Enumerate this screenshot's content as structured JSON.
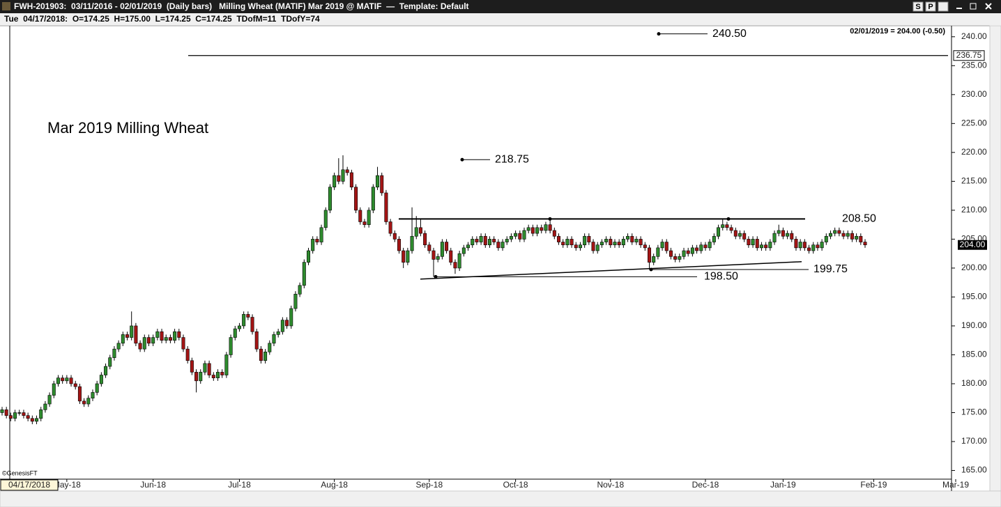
{
  "header": {
    "symbol_line": "FWH-201903:  03/11/2016 - 02/01/2019  (Daily bars)   Milling Wheat (MATIF) Mar 2019 @ MATIF  —  Template: Default",
    "buttons": [
      "S",
      "P"
    ],
    "info_line": "Tue  04/17/2018:  O=174.25  H=175.00  L=174.25  C=174.25  TDofM=11  TDofY=74"
  },
  "chart_data": {
    "type": "candlestick",
    "title": "Mar 2019 Milling Wheat",
    "status": "02/01/2019 = 204.00 (-0.50)",
    "watermark": "©GenesisFT",
    "cursor_date": "04/17/2018",
    "up_color": "#2e8b2e",
    "down_color": "#a31515",
    "ylim": [
      163.5,
      241.9
    ],
    "yticks": [
      {
        "value": 165,
        "label": "165.00"
      },
      {
        "value": 170,
        "label": "170.00"
      },
      {
        "value": 175,
        "label": "175.00"
      },
      {
        "value": 180,
        "label": "180.00"
      },
      {
        "value": 185,
        "label": "185.00"
      },
      {
        "value": 190,
        "label": "190.00"
      },
      {
        "value": 195,
        "label": "195.00"
      },
      {
        "value": 200,
        "label": "200.00"
      },
      {
        "value": 205,
        "label": "205.00"
      },
      {
        "value": 210,
        "label": "210.00"
      },
      {
        "value": 215,
        "label": "215.00"
      },
      {
        "value": 220,
        "label": "220.00"
      },
      {
        "value": 225,
        "label": "225.00"
      },
      {
        "value": 230,
        "label": "230.00"
      },
      {
        "value": 235,
        "label": "235.00"
      },
      {
        "value": 240,
        "label": "240.00"
      }
    ],
    "xlim": [
      0,
      221
    ],
    "xticks": [
      {
        "value": 15,
        "label": "May-18"
      },
      {
        "value": 35,
        "label": "Jun-18"
      },
      {
        "value": 55,
        "label": "Jul-18"
      },
      {
        "value": 77,
        "label": "Aug-18"
      },
      {
        "value": 99,
        "label": "Sep-18"
      },
      {
        "value": 119,
        "label": "Oct-18"
      },
      {
        "value": 141,
        "label": "Nov-18"
      },
      {
        "value": 163,
        "label": "Dec-18"
      },
      {
        "value": 181,
        "label": "Jan-19"
      },
      {
        "value": 202,
        "label": "Feb-19"
      },
      {
        "value": 221,
        "label": "Mar-19"
      }
    ],
    "hline": {
      "value": 236.75,
      "label": "236.75"
    },
    "last_price": {
      "value": 204,
      "label": "204.00"
    },
    "support_line": [
      198.1,
      201.1
    ],
    "annotations": [
      {
        "value": 240.5,
        "label": "240.50"
      },
      {
        "value": 218.75,
        "label": "218.75"
      },
      {
        "value": 208.5,
        "label": "208.50"
      },
      {
        "value": 199.75,
        "label": "199.75"
      },
      {
        "value": 198.5,
        "label": "198.50"
      }
    ],
    "ohlc": [
      [
        175,
        176,
        174.5,
        175.5
      ],
      [
        175.5,
        176,
        174,
        174.5
      ],
      [
        174.5,
        175,
        173.5,
        174
      ],
      [
        174,
        175.5,
        173.5,
        175
      ],
      [
        175,
        175.5,
        174.5,
        175
      ],
      [
        175,
        175.5,
        174,
        174.5
      ],
      [
        174.5,
        175,
        173.5,
        174
      ],
      [
        174,
        174.5,
        173,
        173.5
      ],
      [
        173.5,
        174.5,
        173,
        174
      ],
      [
        174,
        176,
        173.5,
        175.5
      ],
      [
        175.5,
        177,
        175,
        176.5
      ],
      [
        176.5,
        178.5,
        176,
        178
      ],
      [
        178,
        180.5,
        177.5,
        180
      ],
      [
        180,
        181.5,
        179.5,
        181
      ],
      [
        181,
        181.5,
        180,
        180.5
      ],
      [
        180.5,
        181.5,
        180,
        181
      ],
      [
        181,
        181.5,
        179.5,
        180
      ],
      [
        180,
        180.5,
        179,
        179.5
      ],
      [
        179.5,
        180,
        176.5,
        177
      ],
      [
        177,
        177.5,
        176,
        176.5
      ],
      [
        176.5,
        178,
        176,
        177.5
      ],
      [
        177.5,
        179,
        177,
        178.5
      ],
      [
        178.5,
        180.5,
        178,
        180
      ],
      [
        180,
        182,
        179.5,
        181.5
      ],
      [
        181.5,
        183.5,
        181,
        183
      ],
      [
        183,
        185,
        182.5,
        184.5
      ],
      [
        184.5,
        186.5,
        184,
        186
      ],
      [
        186,
        187.5,
        185.5,
        187
      ],
      [
        187,
        189,
        186.5,
        188.5
      ],
      [
        188.5,
        189,
        187.5,
        188
      ],
      [
        188,
        192.5,
        187.5,
        190
      ],
      [
        190,
        190.5,
        186.5,
        187
      ],
      [
        187,
        187.5,
        185.5,
        186
      ],
      [
        186,
        188.5,
        185.5,
        188
      ],
      [
        188,
        188.5,
        186.5,
        187
      ],
      [
        187,
        188.5,
        186.5,
        188
      ],
      [
        188,
        189.5,
        187.5,
        189
      ],
      [
        189,
        189.5,
        187,
        187.5
      ],
      [
        187.5,
        188.5,
        187,
        188
      ],
      [
        188,
        188.5,
        187,
        187.5
      ],
      [
        187.5,
        189.5,
        187,
        189
      ],
      [
        189,
        189.5,
        187.5,
        188
      ],
      [
        188,
        188.5,
        185.5,
        186
      ],
      [
        186,
        186.5,
        183.5,
        184
      ],
      [
        184,
        184.5,
        181.5,
        182
      ],
      [
        182,
        182.5,
        178.5,
        180.5
      ],
      [
        180.5,
        182.5,
        180,
        182
      ],
      [
        182,
        184,
        181.5,
        183.5
      ],
      [
        183.5,
        184,
        181,
        181.5
      ],
      [
        181.5,
        182,
        180.5,
        181
      ],
      [
        181,
        182.5,
        180.5,
        182
      ],
      [
        182,
        182.5,
        181,
        181.5
      ],
      [
        181.5,
        185.5,
        181,
        185
      ],
      [
        185,
        188.5,
        184.5,
        188
      ],
      [
        188,
        190,
        187.5,
        189.5
      ],
      [
        189.5,
        190.5,
        189,
        190
      ],
      [
        190,
        192.5,
        189.5,
        192
      ],
      [
        192,
        192.5,
        191,
        191.5
      ],
      [
        191.5,
        192,
        188.5,
        189
      ],
      [
        189,
        189.5,
        185.5,
        186
      ],
      [
        186,
        186.5,
        183.5,
        184
      ],
      [
        184,
        186,
        183.5,
        185.5
      ],
      [
        185.5,
        187.5,
        185,
        187
      ],
      [
        187,
        189,
        186.5,
        188.5
      ],
      [
        188.5,
        189.5,
        188,
        189
      ],
      [
        189,
        191.5,
        188.5,
        191
      ],
      [
        191,
        191.5,
        189.5,
        190
      ],
      [
        190,
        193.5,
        189.5,
        193
      ],
      [
        193,
        196,
        192.5,
        195.5
      ],
      [
        195.5,
        197.5,
        195,
        197
      ],
      [
        197,
        201.5,
        196.5,
        201
      ],
      [
        201,
        203.5,
        200.5,
        203
      ],
      [
        203,
        205.5,
        202.5,
        205
      ],
      [
        205,
        205.5,
        204,
        204.5
      ],
      [
        204.5,
        207.5,
        204,
        207
      ],
      [
        207,
        210.5,
        206.5,
        210
      ],
      [
        210,
        214.5,
        209.5,
        214
      ],
      [
        214,
        216.5,
        213.5,
        216
      ],
      [
        216,
        219,
        214.5,
        215
      ],
      [
        215,
        219.5,
        214.5,
        217
      ],
      [
        217,
        217.5,
        216,
        216.5
      ],
      [
        216.5,
        217,
        213.5,
        214
      ],
      [
        214,
        214.5,
        209.5,
        210
      ],
      [
        210,
        210.5,
        207.5,
        208
      ],
      [
        208,
        208.5,
        207,
        207.5
      ],
      [
        207.5,
        210.5,
        207,
        210
      ],
      [
        210,
        214.5,
        209.5,
        214
      ],
      [
        214,
        217.5,
        213.5,
        216
      ],
      [
        216,
        216.5,
        212.5,
        213
      ],
      [
        213,
        213.5,
        207.5,
        208
      ],
      [
        208,
        208.5,
        205.5,
        206
      ],
      [
        206,
        206.5,
        204.5,
        205
      ],
      [
        205,
        205.5,
        202.5,
        203
      ],
      [
        203,
        203.5,
        200,
        201
      ],
      [
        201,
        203.5,
        200.5,
        203
      ],
      [
        203,
        210.5,
        202.5,
        205.5
      ],
      [
        205.5,
        209,
        205,
        207
      ],
      [
        207,
        208.5,
        205.5,
        206
      ],
      [
        206,
        206.5,
        203.5,
        204
      ],
      [
        204,
        204.5,
        202.5,
        203
      ],
      [
        203,
        203.5,
        198.5,
        201.5
      ],
      [
        201.5,
        202.5,
        201,
        202
      ],
      [
        202,
        205,
        201.5,
        204.5
      ],
      [
        204.5,
        205,
        202.5,
        203
      ],
      [
        203,
        203.5,
        200.5,
        201
      ],
      [
        201,
        201.5,
        199,
        200
      ],
      [
        200,
        203,
        199.5,
        202.5
      ],
      [
        202.5,
        204,
        202,
        203.5
      ],
      [
        203.5,
        204.5,
        203,
        204
      ],
      [
        204,
        205.5,
        203.5,
        205
      ],
      [
        205,
        205.5,
        204,
        204.5
      ],
      [
        204.5,
        206,
        204,
        205.5
      ],
      [
        205.5,
        206,
        203.5,
        204
      ],
      [
        204,
        205.5,
        203.5,
        205
      ],
      [
        205,
        205.5,
        204,
        204.5
      ],
      [
        204.5,
        205,
        203,
        203.5
      ],
      [
        203.5,
        205,
        203,
        204.5
      ],
      [
        204.5,
        205.5,
        204,
        205
      ],
      [
        205,
        206,
        204.5,
        205.5
      ],
      [
        205.5,
        206.5,
        205,
        206
      ],
      [
        206,
        206.5,
        204.5,
        205
      ],
      [
        205,
        207,
        204.5,
        206.5
      ],
      [
        206.5,
        207.5,
        206,
        207
      ],
      [
        207,
        207.5,
        205.5,
        206
      ],
      [
        206,
        207.5,
        205.5,
        207
      ],
      [
        207,
        207.5,
        206,
        206.5
      ],
      [
        206.5,
        208,
        206,
        207.5
      ],
      [
        207.5,
        208.5,
        206,
        206.5
      ],
      [
        206.5,
        207,
        205,
        205.5
      ],
      [
        205.5,
        206,
        204,
        204.5
      ],
      [
        204.5,
        205,
        203.5,
        204
      ],
      [
        204,
        205.5,
        203.5,
        205
      ],
      [
        205,
        205.5,
        203.5,
        204
      ],
      [
        204,
        204.5,
        203,
        203.5
      ],
      [
        203.5,
        204.5,
        203,
        204
      ],
      [
        204,
        206,
        203.5,
        205.5
      ],
      [
        205.5,
        206,
        204,
        204.5
      ],
      [
        204.5,
        205,
        202.5,
        203
      ],
      [
        203,
        204.5,
        202.5,
        204
      ],
      [
        204,
        205,
        203.5,
        204.5
      ],
      [
        204.5,
        205.5,
        204,
        205
      ],
      [
        205,
        205.5,
        203.5,
        204
      ],
      [
        204,
        205,
        203.5,
        204.5
      ],
      [
        204.5,
        205,
        203.5,
        204
      ],
      [
        204,
        205.5,
        203.5,
        205
      ],
      [
        205,
        206,
        204.5,
        205.5
      ],
      [
        205.5,
        206,
        204,
        204.5
      ],
      [
        204.5,
        205.5,
        204,
        205
      ],
      [
        205,
        205.5,
        203.5,
        204
      ],
      [
        204,
        204.5,
        203,
        203.5
      ],
      [
        203.5,
        204,
        199.75,
        201
      ],
      [
        201,
        202.5,
        200.5,
        202
      ],
      [
        202,
        204,
        201.5,
        203.5
      ],
      [
        203.5,
        205,
        203,
        204.5
      ],
      [
        204.5,
        205,
        202.5,
        203
      ],
      [
        203,
        203.5,
        201.5,
        202
      ],
      [
        202,
        202.5,
        201,
        201.5
      ],
      [
        201.5,
        202.5,
        201,
        202
      ],
      [
        202,
        203.5,
        201.5,
        203
      ],
      [
        203,
        203.5,
        202,
        202.5
      ],
      [
        202.5,
        204,
        202,
        203.5
      ],
      [
        203.5,
        204,
        202.5,
        203
      ],
      [
        203,
        204.5,
        202.5,
        204
      ],
      [
        204,
        204.5,
        203,
        203.5
      ],
      [
        203.5,
        205,
        203,
        204.5
      ],
      [
        204.5,
        206,
        204,
        205.5
      ],
      [
        205.5,
        207.5,
        205,
        207
      ],
      [
        207,
        208.5,
        206.5,
        207.5
      ],
      [
        207.5,
        208,
        206.5,
        207
      ],
      [
        207,
        207.5,
        206,
        206.5
      ],
      [
        206.5,
        207,
        205,
        205.5
      ],
      [
        205.5,
        206.5,
        205,
        206
      ],
      [
        206,
        206.5,
        204.5,
        205
      ],
      [
        205,
        205.5,
        203.5,
        204
      ],
      [
        204,
        205.5,
        203.5,
        205
      ],
      [
        205,
        205.5,
        203,
        203.5
      ],
      [
        203.5,
        204.5,
        203,
        204
      ],
      [
        204,
        204.5,
        203,
        203.5
      ],
      [
        203.5,
        205,
        203,
        204.5
      ],
      [
        204.5,
        206.5,
        204,
        206
      ],
      [
        206,
        207.5,
        205.5,
        206.5
      ],
      [
        206.5,
        207,
        205,
        205.5
      ],
      [
        205.5,
        206.5,
        205,
        206
      ],
      [
        206,
        206.5,
        204.5,
        205
      ],
      [
        205,
        205.5,
        203,
        203.5
      ],
      [
        203.5,
        205,
        203,
        204.5
      ],
      [
        204.5,
        205,
        203,
        203.5
      ],
      [
        203.5,
        204,
        202.5,
        203
      ],
      [
        203,
        204.5,
        202.5,
        204
      ],
      [
        204,
        204.5,
        203,
        203.5
      ],
      [
        203.5,
        205,
        203,
        204.5
      ],
      [
        204.5,
        206,
        204,
        205.5
      ],
      [
        205.5,
        206.5,
        205,
        206
      ],
      [
        206,
        207,
        205.5,
        206.5
      ],
      [
        206.5,
        207,
        205.5,
        206
      ],
      [
        206,
        206.5,
        205,
        205.5
      ],
      [
        205.5,
        206.5,
        205,
        206
      ],
      [
        206,
        206.5,
        204.5,
        205
      ],
      [
        205,
        206,
        204.5,
        205.5
      ],
      [
        205.5,
        206,
        204,
        204.5
      ],
      [
        204.5,
        205,
        203.5,
        204
      ]
    ]
  }
}
